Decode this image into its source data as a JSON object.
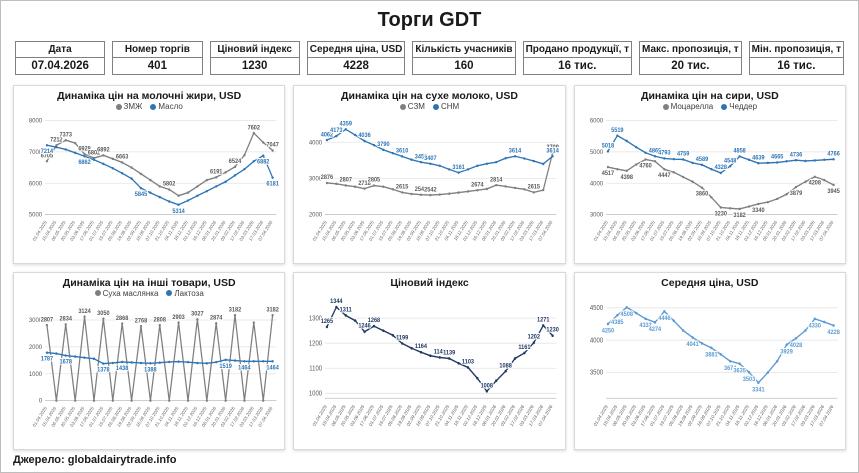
{
  "page": {
    "title": "Торги GDT",
    "source": "Джерело: globaldairytrade.info"
  },
  "stats": [
    {
      "label": "Дата",
      "value": "07.04.2026"
    },
    {
      "label": "Номер торгів",
      "value": "401"
    },
    {
      "label": "Ціновий індекс",
      "value": "1230"
    },
    {
      "label": "Середня ціна, USD",
      "value": "4228"
    },
    {
      "label": "Кількість учасників",
      "value": "160"
    },
    {
      "label": "Продано продукції, т",
      "value": "16 тис."
    },
    {
      "label": "Макс. пропозиція, т",
      "value": "20 тис."
    },
    {
      "label": "Мін. пропозиція, т",
      "value": "16 тис."
    }
  ],
  "dates": [
    "01.04.2025",
    "15.04.2025",
    "06.05.2025",
    "20.05.2025",
    "03.06.2025",
    "17.06.2025",
    "01.07.2025",
    "15.07.2025",
    "05.08.2025",
    "19.08.2025",
    "02.09.2025",
    "16.09.2025",
    "07.10.2025",
    "21.10.2025",
    "04.11.2025",
    "18.11.2025",
    "02.12.2025",
    "16.12.2025",
    "06.01.2026",
    "20.01.2026",
    "03.02.2026",
    "17.02.2026",
    "03.03.2026",
    "17.03.2026",
    "07.04.2026"
  ],
  "chart_data": [
    {
      "type": "line",
      "title": "Динаміка цін на молочні жири, USD",
      "ylim": [
        5000,
        8000
      ],
      "yticks": [
        5000,
        6000,
        7000,
        8000
      ],
      "legend_position": "top",
      "series": [
        {
          "name": "ЗМЖ",
          "color": "#7f7f7f",
          "label_color": "#595959",
          "label_pos": "above",
          "values": [
            6705,
            7212,
            7373,
            7280,
            6928,
            6802,
            6892,
            6780,
            6663,
            6500,
            6300,
            6100,
            5900,
            5802,
            5602,
            5702,
            5900,
            6100,
            6191,
            6350,
            6524,
            6900,
            7602,
            7300,
            7047
          ],
          "labels": {
            "0": "6705",
            "1": "7212",
            "2": "7373",
            "4": "6928",
            "5": "6802",
            "6": "6892",
            "8": "6663",
            "13": "5802",
            "18": "6191",
            "20": "6524",
            "22": "7602",
            "24": "7047"
          }
        },
        {
          "name": "Масло",
          "color": "#2e75b6",
          "label_pos": "below",
          "values": [
            7214,
            7150,
            7080,
            6970,
            6862,
            6750,
            6620,
            6480,
            6320,
            6150,
            5845,
            5700,
            5560,
            5420,
            5314,
            5450,
            5600,
            5750,
            5900,
            6050,
            6250,
            6450,
            6700,
            6882,
            6181
          ],
          "labels": {
            "0": "7214",
            "4": "6862",
            "10": "5845",
            "14": "5314",
            "23": "6882",
            "24": "6181"
          }
        }
      ]
    },
    {
      "type": "line",
      "title": "Динаміка цін на сухе молоко, USD",
      "ylim": [
        2000,
        4600
      ],
      "yticks": [
        2000,
        3000,
        4000
      ],
      "legend_position": "top",
      "series": [
        {
          "name": "СЗМ",
          "color": "#7f7f7f",
          "label_color": "#595959",
          "label_pos": "above",
          "values": [
            2876,
            2850,
            2807,
            2770,
            2718,
            2805,
            2770,
            2700,
            2615,
            2570,
            2549,
            2542,
            2555,
            2580,
            2610,
            2640,
            2674,
            2710,
            2814,
            2780,
            2740,
            2700,
            2615,
            2680,
            3709
          ],
          "labels": {
            "0": "2876",
            "2": "2807",
            "4": "2718",
            "5": "2805",
            "8": "2615",
            "10": "2549",
            "11": "2542",
            "16": "2674",
            "18": "2814",
            "22": "2615",
            "24": "3709"
          }
        },
        {
          "name": "СНМ",
          "color": "#2e75b6",
          "label_pos": "above",
          "values": [
            4062,
            4173,
            4359,
            4200,
            4036,
            3920,
            3790,
            3700,
            3610,
            3520,
            3452,
            3407,
            3350,
            3250,
            3161,
            3250,
            3350,
            3407,
            3452,
            3560,
            3614,
            3550,
            3480,
            3400,
            3614
          ],
          "labels": {
            "0": "4062",
            "1": "4173",
            "2": "4359",
            "4": "4036",
            "6": "3790",
            "8": "3610",
            "10": "3452",
            "11": "3407",
            "14": "3161",
            "20": "3614",
            "24": "3614"
          }
        }
      ]
    },
    {
      "type": "line",
      "title": "Динаміка цін на сири, USD",
      "ylim": [
        3000,
        6000
      ],
      "yticks": [
        3000,
        4000,
        5000,
        6000
      ],
      "legend_position": "top",
      "series": [
        {
          "name": "Моцарелла",
          "color": "#7f7f7f",
          "label_color": "#595959",
          "label_pos": "below",
          "values": [
            4517,
            4450,
            4398,
            4600,
            4760,
            4700,
            4447,
            4350,
            4200,
            4050,
            3860,
            3550,
            3230,
            3200,
            3182,
            3260,
            3340,
            3400,
            3500,
            3650,
            3879,
            4050,
            4208,
            4100,
            3945
          ],
          "labels": {
            "0": "4517",
            "2": "4398",
            "4": "4760",
            "6": "4447",
            "10": "3860",
            "12": "3230",
            "14": "3182",
            "16": "3340",
            "20": "3879",
            "22": "4208",
            "24": "3945"
          }
        },
        {
          "name": "Чеддер",
          "color": "#2e75b6",
          "label_pos": "above",
          "values": [
            5018,
            5519,
            5350,
            5150,
            4973,
            4860,
            4793,
            4770,
            4759,
            4650,
            4589,
            4450,
            4328,
            4548,
            4858,
            4750,
            4639,
            4650,
            4665,
            4700,
            4736,
            4710,
            4728,
            4750,
            4766
          ],
          "labels": {
            "0": "5018",
            "1": "5519",
            "5": "4860",
            "6": "4793",
            "8": "4759",
            "10": "4589",
            "12": "4328",
            "13": "4548",
            "14": "4858",
            "16": "4639",
            "18": "4665",
            "20": "4736",
            "24": "4766"
          }
        }
      ]
    },
    {
      "type": "line",
      "title": "Динаміка цін на інші товари, USD",
      "ylim": [
        0,
        3500
      ],
      "yticks": [
        0,
        1000,
        2000,
        3000
      ],
      "legend_position": "top",
      "series": [
        {
          "name": "Суха маслянка",
          "color": "#7f7f7f",
          "label_color": "#595959",
          "label_pos": "above",
          "values": [
            2807,
            0,
            2834,
            0,
            3124,
            0,
            3050,
            0,
            2868,
            0,
            2768,
            0,
            2808,
            0,
            2903,
            0,
            3027,
            0,
            2874,
            0,
            3182,
            0,
            2903,
            0,
            3182
          ],
          "labels": {
            "0": "2807",
            "2": "2834",
            "4": "3124",
            "6": "3050",
            "8": "2868",
            "10": "2768",
            "12": "2808",
            "14": "2903",
            "16": "3027",
            "18": "2874",
            "20": "3182",
            "24": "3182"
          }
        },
        {
          "name": "Лактоза",
          "color": "#2e75b6",
          "label_pos": "below",
          "values": [
            1787,
            1750,
            1678,
            1640,
            1600,
            1560,
            1378,
            1400,
            1438,
            1420,
            1400,
            1388,
            1410,
            1438,
            1450,
            1430,
            1400,
            1388,
            1430,
            1519,
            1490,
            1464,
            1464,
            1464,
            1464
          ],
          "labels": {
            "0": "1787",
            "2": "1678",
            "6": "1378",
            "8": "1438",
            "11": "1388",
            "19": "1519",
            "21": "1464",
            "24": "1464"
          }
        }
      ]
    },
    {
      "type": "line",
      "title": "Ціновий індекс",
      "ylim": [
        980,
        1380
      ],
      "yticks": [
        1000,
        1100,
        1200,
        1300
      ],
      "legend_position": "none",
      "series": [
        {
          "name": "Ціновий індекс",
          "color": "#203864",
          "label_pos": "above",
          "values": [
            1265,
            1344,
            1311,
            1290,
            1246,
            1268,
            1250,
            1232,
            1199,
            1180,
            1164,
            1150,
            1143,
            1139,
            1120,
            1103,
            1060,
            1008,
            1050,
            1088,
            1139,
            1161,
            1202,
            1271,
            1230
          ],
          "labels": {
            "0": "1265",
            "1": "1344",
            "2": "1311",
            "4": "1246",
            "5": "1268",
            "8": "1199",
            "10": "1164",
            "12": "1143",
            "13": "1139",
            "15": "1103",
            "17": "1008",
            "19": "1088",
            "21": "1161",
            "22": "1202",
            "23": "1271",
            "24": "1230"
          }
        }
      ]
    },
    {
      "type": "line",
      "title": "Середня ціна, USD",
      "ylim": [
        3100,
        4650
      ],
      "yticks": [
        3500,
        4000,
        4500
      ],
      "legend_position": "none",
      "series": [
        {
          "name": "Середня ціна",
          "color": "#5b9bd5",
          "label_pos": "below",
          "values": [
            4250,
            4385,
            4508,
            4420,
            4332,
            4274,
            4446,
            4300,
            4150,
            4041,
            3950,
            3881,
            3780,
            3674,
            3635,
            3503,
            3341,
            3500,
            3674,
            3929,
            4028,
            4150,
            4330,
            4280,
            4228
          ],
          "labels": {
            "0": "4250",
            "1": "4385",
            "2": "4508",
            "4": "4332",
            "5": "4274",
            "6": "4446",
            "9": "4041",
            "11": "3881",
            "13": "3674",
            "14": "3635",
            "15": "3503",
            "16": "3341",
            "19": "3929",
            "20": "4028",
            "22": "4330",
            "24": "4228"
          }
        }
      ]
    }
  ]
}
